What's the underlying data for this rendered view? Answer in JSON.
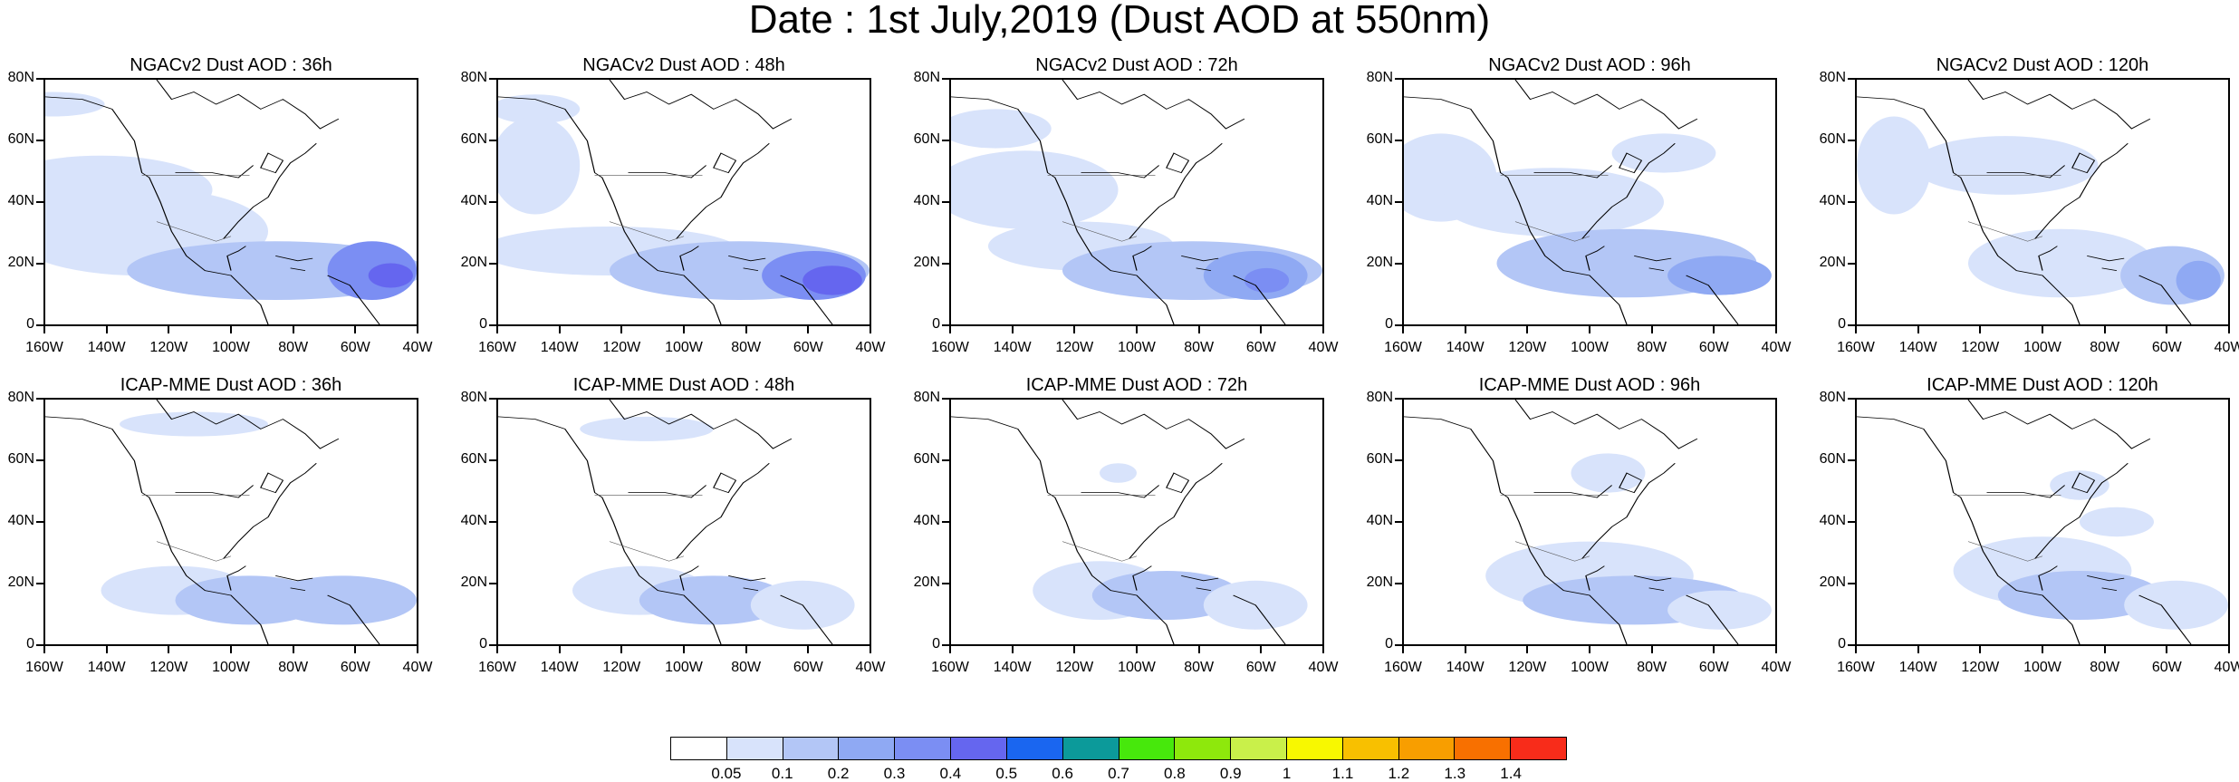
{
  "title": "Date : 1st July,2019 (Dust AOD at 550nm)",
  "panels": [
    {
      "title": "NGACv2 Dust AOD : 36h"
    },
    {
      "title": "NGACv2 Dust AOD : 48h"
    },
    {
      "title": "NGACv2 Dust AOD : 72h"
    },
    {
      "title": "NGACv2 Dust AOD : 96h"
    },
    {
      "title": "NGACv2 Dust AOD : 120h"
    },
    {
      "title": "ICAP-MME Dust AOD : 36h"
    },
    {
      "title": "ICAP-MME Dust AOD : 48h"
    },
    {
      "title": "ICAP-MME Dust AOD : 72h"
    },
    {
      "title": "ICAP-MME Dust AOD : 96h"
    },
    {
      "title": "ICAP-MME Dust AOD : 120h"
    }
  ],
  "axes": {
    "y_labels": [
      "80N",
      "60N",
      "40N",
      "20N",
      "0"
    ],
    "x_labels": [
      "160W",
      "140W",
      "120W",
      "100W",
      "80W",
      "60W",
      "40W"
    ]
  },
  "colorbar": {
    "labels": [
      "0.05",
      "0.1",
      "0.2",
      "0.3",
      "0.4",
      "0.5",
      "0.6",
      "0.7",
      "0.8",
      "0.9",
      "1",
      "1.1",
      "1.2",
      "1.3",
      "1.4"
    ],
    "colors": [
      "#ffffff",
      "#d8e3fb",
      "#b3c6f6",
      "#8fa9f3",
      "#7b8ef3",
      "#6566ef",
      "#1a66f0",
      "#0c9a9a",
      "#47e80c",
      "#8ee80c",
      "#c9f04a",
      "#f8f800",
      "#f8c000",
      "#f89e00",
      "#f87000",
      "#f82c1a"
    ]
  }
}
